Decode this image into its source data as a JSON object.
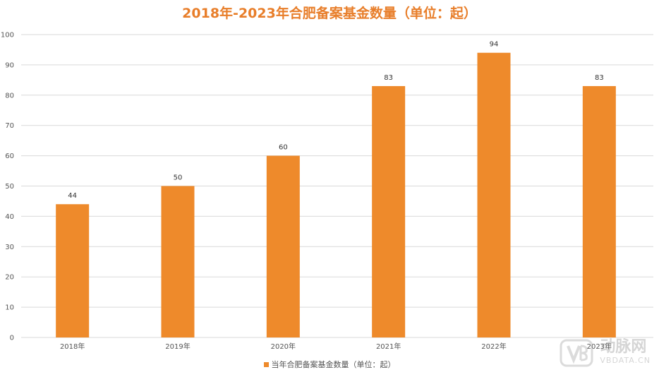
{
  "chart_data": {
    "type": "bar",
    "title": "2018年-2023年合肥备案基金数量（单位：起）",
    "categories": [
      "2018年",
      "2019年",
      "2020年",
      "2021年",
      "2022年",
      "2023年"
    ],
    "series": [
      {
        "name": "当年合肥备案基金数量（单位：起）",
        "values": [
          44,
          50,
          60,
          83,
          94,
          83
        ]
      }
    ],
    "ylim": [
      0,
      100
    ],
    "yticks": [
      0,
      10,
      20,
      30,
      40,
      50,
      60,
      70,
      80,
      90,
      100
    ],
    "xlabel": "",
    "ylabel": "",
    "grid": true,
    "legend": "bottom",
    "colors": {
      "bar": "#ee8a2b",
      "title": "#e87e2a",
      "grid": "#d9d9d9"
    }
  },
  "watermark": {
    "logo_text": "动脉网",
    "site": "VBDATA.CN"
  }
}
